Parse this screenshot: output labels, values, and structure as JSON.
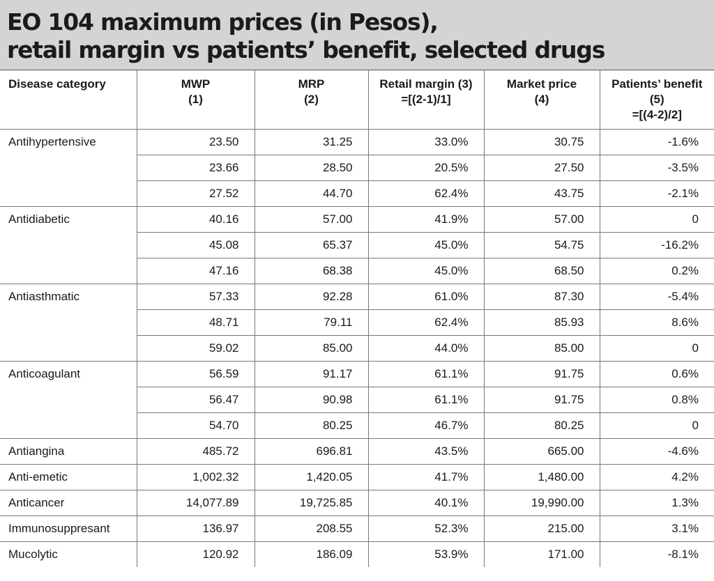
{
  "title": {
    "line1": "EO 104 maximum prices (in Pesos),",
    "line2": "retail margin vs patients’ benefit, selected drugs"
  },
  "chart_data": {
    "type": "table",
    "title": "EO 104 maximum prices (in Pesos), retail margin vs patients’ benefit, selected drugs",
    "columns": [
      {
        "line1": "Disease category",
        "line2": "",
        "line3": ""
      },
      {
        "line1": "MWP",
        "line2": "(1)",
        "line3": ""
      },
      {
        "line1": "MRP",
        "line2": "(2)",
        "line3": ""
      },
      {
        "line1": "Retail margin (3)",
        "line2": "=[(2-1)/1]",
        "line3": ""
      },
      {
        "line1": "Market price",
        "line2": "(4)",
        "line3": ""
      },
      {
        "line1": "Patients’ benefit",
        "line2": "(5)",
        "line3": "=[(4-2)/2]"
      }
    ],
    "groups": [
      {
        "category": "Antihypertensive",
        "rows": [
          [
            "23.50",
            "31.25",
            "33.0%",
            "30.75",
            "-1.6%"
          ],
          [
            "23.66",
            "28.50",
            "20.5%",
            "27.50",
            "-3.5%"
          ],
          [
            "27.52",
            "44.70",
            "62.4%",
            "43.75",
            "-2.1%"
          ]
        ]
      },
      {
        "category": "Antidiabetic",
        "rows": [
          [
            "40.16",
            "57.00",
            "41.9%",
            "57.00",
            "0"
          ],
          [
            "45.08",
            "65.37",
            "45.0%",
            "54.75",
            "-16.2%"
          ],
          [
            "47.16",
            "68.38",
            "45.0%",
            "68.50",
            "0.2%"
          ]
        ]
      },
      {
        "category": "Antiasthmatic",
        "rows": [
          [
            "57.33",
            "92.28",
            "61.0%",
            "87.30",
            "-5.4%"
          ],
          [
            "48.71",
            "79.11",
            "62.4%",
            "85.93",
            "8.6%"
          ],
          [
            "59.02",
            "85.00",
            "44.0%",
            "85.00",
            "0"
          ]
        ]
      },
      {
        "category": "Anticoagulant",
        "rows": [
          [
            "56.59",
            "91.17",
            "61.1%",
            "91.75",
            "0.6%"
          ],
          [
            "56.47",
            "90.98",
            "61.1%",
            "91.75",
            "0.8%"
          ],
          [
            "54.70",
            "80.25",
            "46.7%",
            "80.25",
            "0"
          ]
        ]
      },
      {
        "category": "Antiangina",
        "rows": [
          [
            "485.72",
            "696.81",
            "43.5%",
            "665.00",
            "-4.6%"
          ]
        ]
      },
      {
        "category": "Anti-emetic",
        "rows": [
          [
            "1,002.32",
            "1,420.05",
            "41.7%",
            "1,480.00",
            "4.2%"
          ]
        ]
      },
      {
        "category": "Anticancer",
        "rows": [
          [
            "14,077.89",
            "19,725.85",
            "40.1%",
            "19,990.00",
            "1.3%"
          ]
        ]
      },
      {
        "category": "Immunosuppresant",
        "rows": [
          [
            "136.97",
            "208.55",
            "52.3%",
            "215.00",
            "3.1%"
          ]
        ]
      },
      {
        "category": "Mucolytic",
        "rows": [
          [
            "120.92",
            "186.09",
            "53.9%",
            "171.00",
            "-8.1%"
          ]
        ]
      }
    ]
  }
}
